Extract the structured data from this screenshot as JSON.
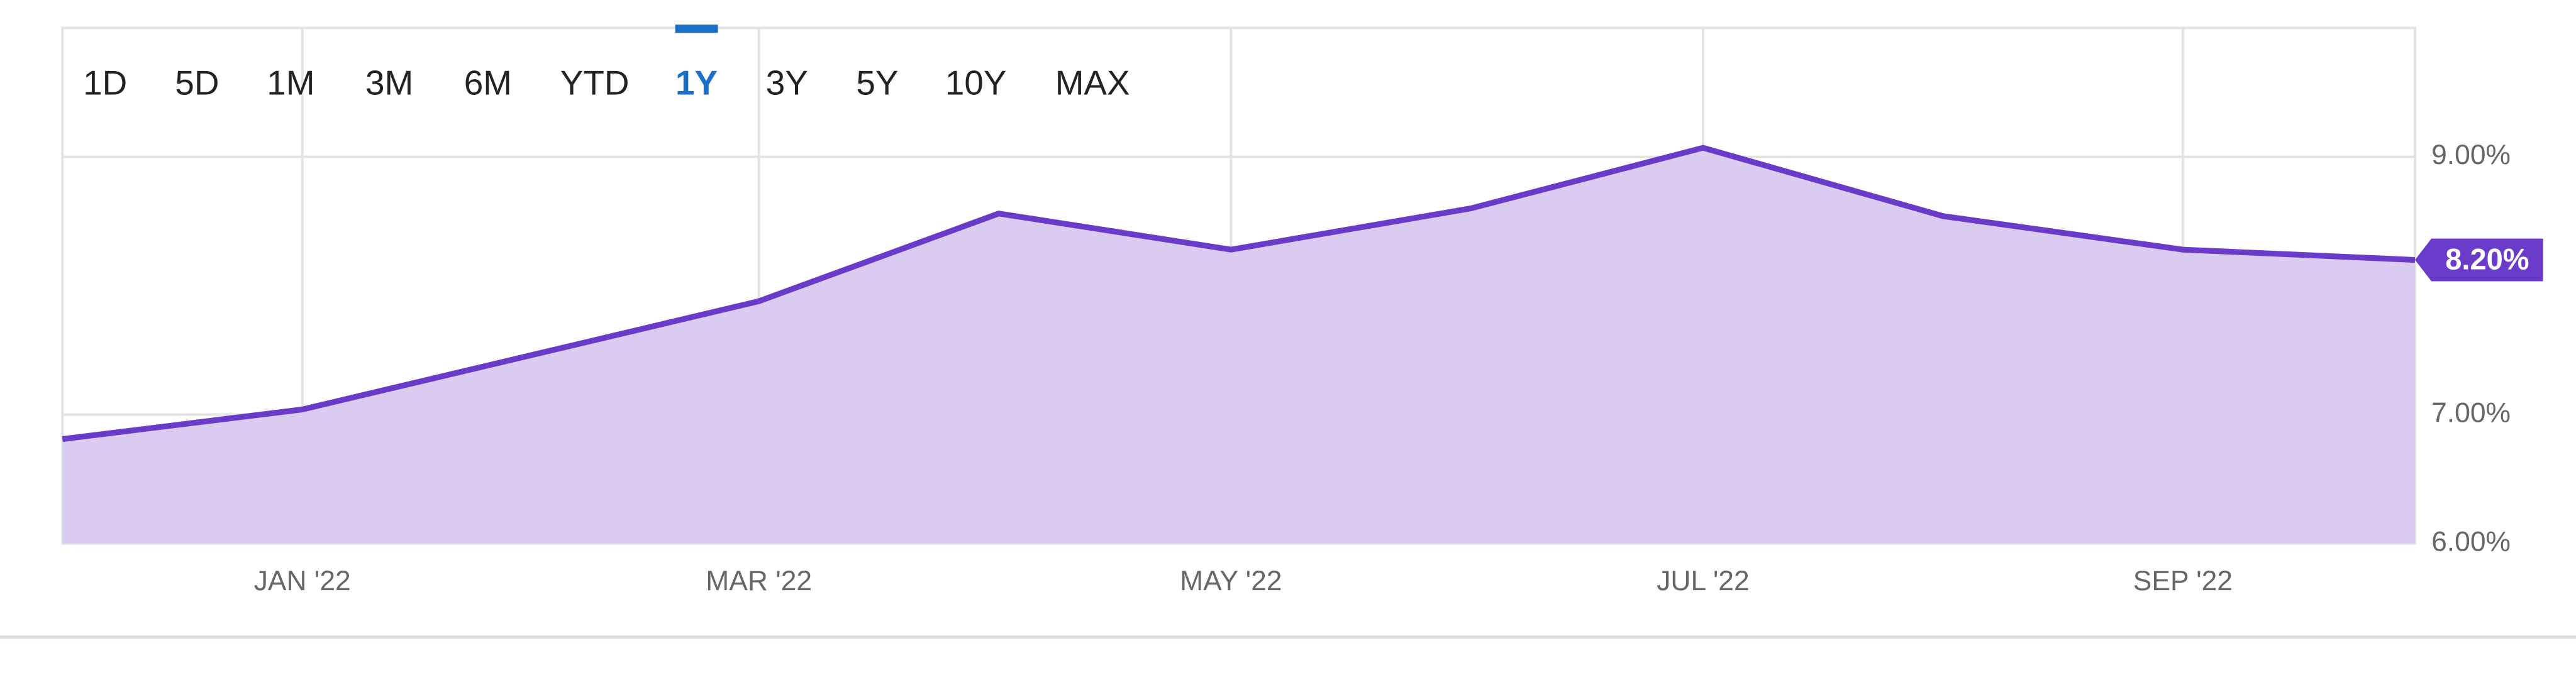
{
  "range_buttons": {
    "items": [
      "1D",
      "5D",
      "1M",
      "3M",
      "6M",
      "YTD",
      "1Y",
      "3Y",
      "5Y",
      "10Y",
      "MAX"
    ],
    "selected": 6
  },
  "chart_data": {
    "type": "area",
    "x": [
      "2021-12",
      "2022-01",
      "2022-03",
      "2022-04",
      "2022-05",
      "2022-06",
      "2022-07",
      "2022-08",
      "2022-09",
      "2022-10"
    ],
    "values": [
      6.81,
      7.04,
      7.88,
      8.56,
      8.28,
      8.6,
      9.07,
      8.54,
      8.28,
      8.2
    ],
    "value_labels": [
      null,
      null,
      null,
      null,
      null,
      null,
      null,
      null,
      null,
      "8.20%"
    ],
    "color": "#6a3bc8",
    "fill_color": "#d9ccf0",
    "xlim": [
      "2021-12",
      "2022-10"
    ],
    "xticks": [
      {
        "value": "2022-01",
        "label": "JAN '22"
      },
      {
        "value": "2022-03",
        "label": "MAR '22"
      },
      {
        "value": "2022-05",
        "label": "MAY '22"
      },
      {
        "value": "2022-07",
        "label": "JUL '22"
      },
      {
        "value": "2022-09",
        "label": "SEP '22"
      }
    ],
    "ylim": [
      6,
      10
    ],
    "yticks": [
      {
        "value": 6,
        "label": "6.00%"
      },
      {
        "value": 7,
        "label": "7.00%"
      },
      {
        "value": 9,
        "label": "9.00%"
      }
    ],
    "grid": true
  }
}
